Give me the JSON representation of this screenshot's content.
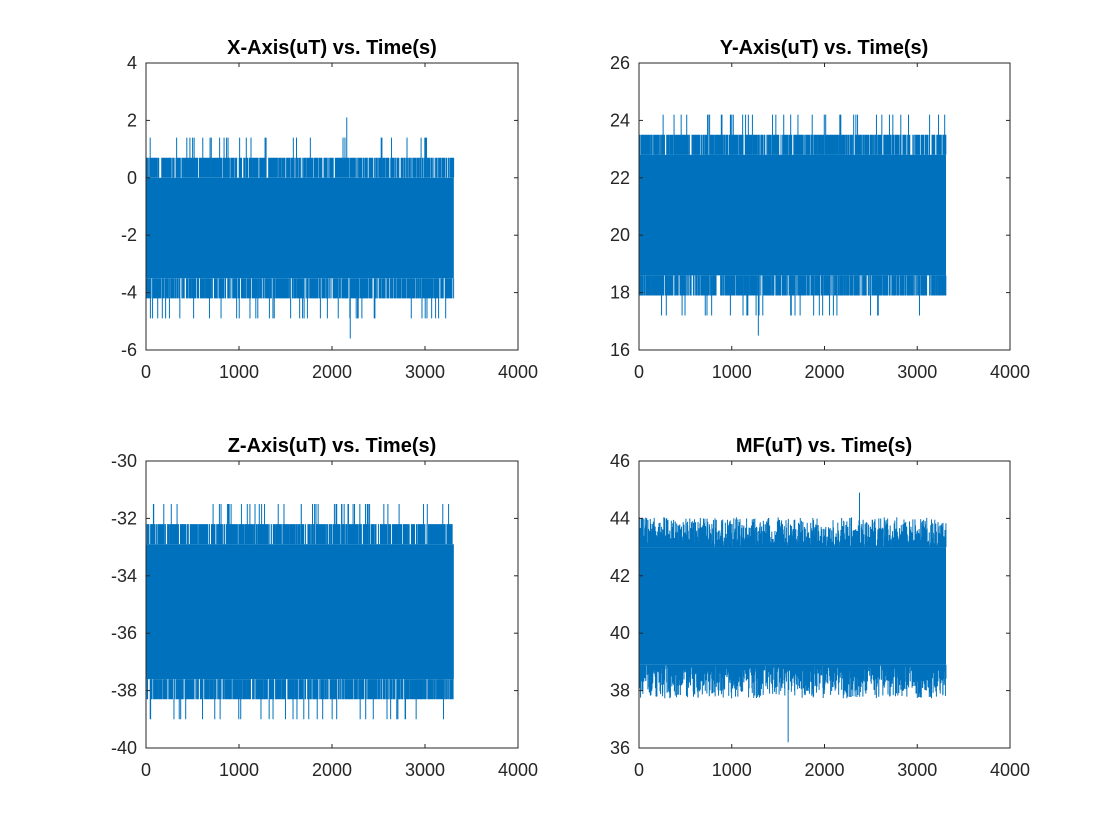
{
  "figure": {
    "background": "#ffffff",
    "axis_color": "#262626",
    "series_color": "#0072bd"
  },
  "chart_data": [
    {
      "type": "line",
      "title": "X-Axis(uT) vs. Time(s)",
      "xlabel": "",
      "ylabel": "",
      "xlim": [
        0,
        4000
      ],
      "ylim": [
        -6,
        4
      ],
      "xticks": [
        "0",
        "1000",
        "2000",
        "3000",
        "4000"
      ],
      "yticks": [
        "-6",
        "-4",
        "-2",
        "0",
        "2",
        "4"
      ],
      "grid": false,
      "series": [
        {
          "color": "#0072bd",
          "x_range": [
            1,
            3310
          ],
          "band": [
            0.0,
            -3.5
          ],
          "envelope": [
            0.7,
            -4.2
          ],
          "quantization_step": 0.7,
          "observed_max": 2.1,
          "observed_min": -5.6
        }
      ]
    },
    {
      "type": "line",
      "title": "Y-Axis(uT) vs. Time(s)",
      "xlabel": "",
      "ylabel": "",
      "xlim": [
        0,
        4000
      ],
      "ylim": [
        16,
        26
      ],
      "xticks": [
        "0",
        "1000",
        "2000",
        "3000",
        "4000"
      ],
      "yticks": [
        "16",
        "18",
        "20",
        "22",
        "24",
        "26"
      ],
      "grid": false,
      "series": [
        {
          "color": "#0072bd",
          "x_range": [
            1,
            3310
          ],
          "band": [
            22.8,
            18.6
          ],
          "envelope": [
            23.5,
            17.9
          ],
          "quantization_step": 0.7,
          "observed_max": 24.2,
          "observed_min": 16.5
        }
      ]
    },
    {
      "type": "line",
      "title": "Z-Axis(uT) vs. Time(s)",
      "xlabel": "",
      "ylabel": "",
      "xlim": [
        0,
        4000
      ],
      "ylim": [
        -40,
        -30
      ],
      "xticks": [
        "0",
        "1000",
        "2000",
        "3000",
        "4000"
      ],
      "yticks": [
        "-40",
        "-38",
        "-36",
        "-34",
        "-32",
        "-30"
      ],
      "grid": false,
      "series": [
        {
          "color": "#0072bd",
          "x_range": [
            1,
            3310
          ],
          "band": [
            -32.9,
            -37.6
          ],
          "envelope": [
            -32.2,
            -38.3
          ],
          "quantization_step": 0.7,
          "observed_max": -31.5,
          "observed_min": -39.0
        }
      ]
    },
    {
      "type": "line",
      "title": "MF(uT) vs. Time(s)",
      "xlabel": "",
      "ylabel": "",
      "xlim": [
        0,
        4000
      ],
      "ylim": [
        36,
        46
      ],
      "xticks": [
        "0",
        "1000",
        "2000",
        "3000",
        "4000"
      ],
      "yticks": [
        "36",
        "38",
        "40",
        "42",
        "44",
        "46"
      ],
      "grid": false,
      "series": [
        {
          "color": "#0072bd",
          "x_range": [
            1,
            3310
          ],
          "band": [
            43.0,
            38.9
          ],
          "envelope": [
            43.8,
            38.0
          ],
          "quantization_step": 0,
          "observed_max": 44.9,
          "observed_min": 36.2
        }
      ]
    }
  ]
}
